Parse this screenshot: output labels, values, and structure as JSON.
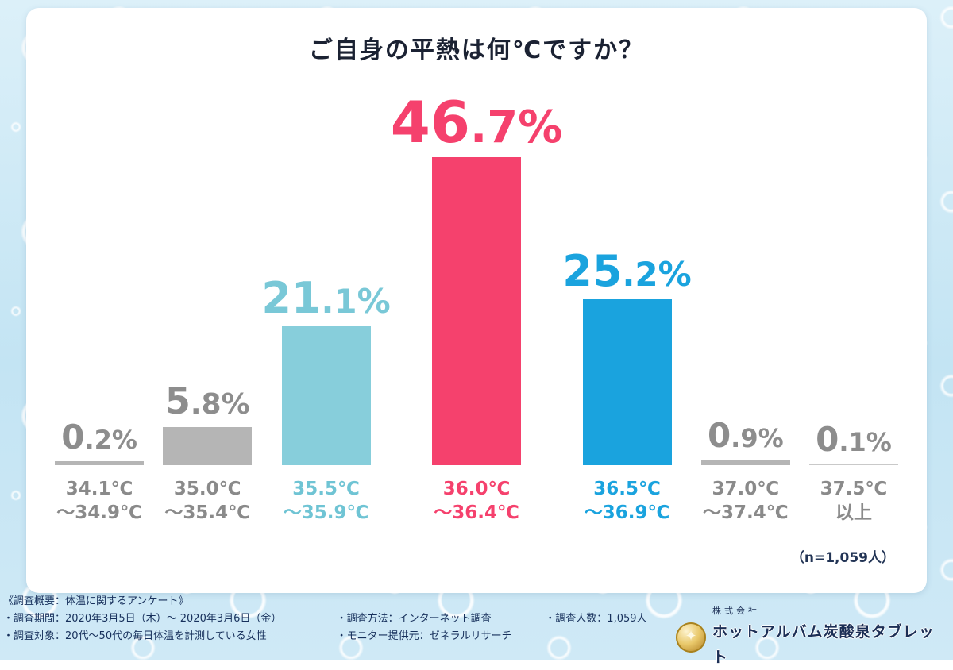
{
  "header": {
    "title": "ご自身の平熱は何℃ですか？"
  },
  "chart_data": {
    "type": "bar",
    "title": "ご自身の平熱は何℃ですか？",
    "categories": [
      "34.1℃～34.9℃",
      "35.0℃～35.4℃",
      "35.5℃～35.9℃",
      "36.0℃～36.4℃",
      "36.5℃～36.9℃",
      "37.0℃～37.4℃",
      "37.5℃以上"
    ],
    "values": [
      0.2,
      5.8,
      21.1,
      46.7,
      25.2,
      0.9,
      0.1
    ],
    "unit": "%",
    "xlabel": "",
    "ylabel": "",
    "ylim": [
      0,
      50
    ],
    "grid": false,
    "legend": null,
    "bar_colors": [
      "#b5b5b5",
      "#b5b5b5",
      "#87cedb",
      "#f5416d",
      "#1aa3de",
      "#b5b5b5",
      "#b5b5b5"
    ],
    "sample_note": "（n=1,059人）"
  },
  "bars": [
    {
      "id": "34-1",
      "value": 0.2,
      "big": "0",
      "small": ".2%",
      "size": "sm2",
      "value_color": "#8d8d8d",
      "bar_color": "#b5b5b5",
      "label1": "34.1℃",
      "label2": "～34.9℃",
      "label_color": "#8a8a8a"
    },
    {
      "id": "35-0",
      "value": 5.8,
      "big": "5",
      "small": ".8%",
      "size": "md",
      "value_color": "#8d8d8d",
      "bar_color": "#b5b5b5",
      "label1": "35.0℃",
      "label2": "～35.4℃",
      "label_color": "#8a8a8a"
    },
    {
      "id": "35-5",
      "value": 21.1,
      "big": "21",
      "small": ".1%",
      "size": "lg",
      "value_color": "#79c8d7",
      "bar_color": "#87cedb",
      "label1": "35.5℃",
      "label2": "～35.9℃",
      "label_color": "#6fc4d4"
    },
    {
      "id": "36-0",
      "value": 46.7,
      "big": "46",
      "small": ".7%",
      "size": "xl",
      "value_color": "#f5416d",
      "bar_color": "#f5416d",
      "label1": "36.0℃",
      "label2": "～36.4℃",
      "label_color": "#f5416d"
    },
    {
      "id": "36-5",
      "value": 25.2,
      "big": "25",
      "small": ".2%",
      "size": "lg",
      "value_color": "#1aa3de",
      "bar_color": "#1aa3de",
      "label1": "36.5℃",
      "label2": "～36.9℃",
      "label_color": "#1aa3de"
    },
    {
      "id": "37-0",
      "value": 0.9,
      "big": "0",
      "small": ".9%",
      "size": "sm2",
      "value_color": "#8d8d8d",
      "bar_color": "#b5b5b5",
      "label1": "37.0℃",
      "label2": "～37.4℃",
      "label_color": "#8a8a8a"
    },
    {
      "id": "37-5",
      "value": 0.1,
      "big": "0",
      "small": ".1%",
      "size": "sm2",
      "value_color": "#8d8d8d",
      "bar_color": "#c9c9c9",
      "label1": "37.5℃",
      "label2": "以上",
      "label_color": "#8a8a8a"
    }
  ],
  "chart": {
    "note": "（n=1,059人）"
  },
  "footer": {
    "heading": "《調査概要：体温に関するアンケート》",
    "col1": [
      "・調査期間：2020年3月5日（木）～ 2020年3月6日（金）",
      "・調査対象：20代～50代の毎日体温を計測している女性"
    ],
    "col2": [
      "・調査方法：インターネット調査",
      "・モニター提供元：ゼネラルリサーチ"
    ],
    "col3": [
      "・調査人数：1,059人"
    ],
    "logo": {
      "company_type": "株式会社",
      "company_name": "ホットアルバム炭酸泉タブレット"
    }
  }
}
